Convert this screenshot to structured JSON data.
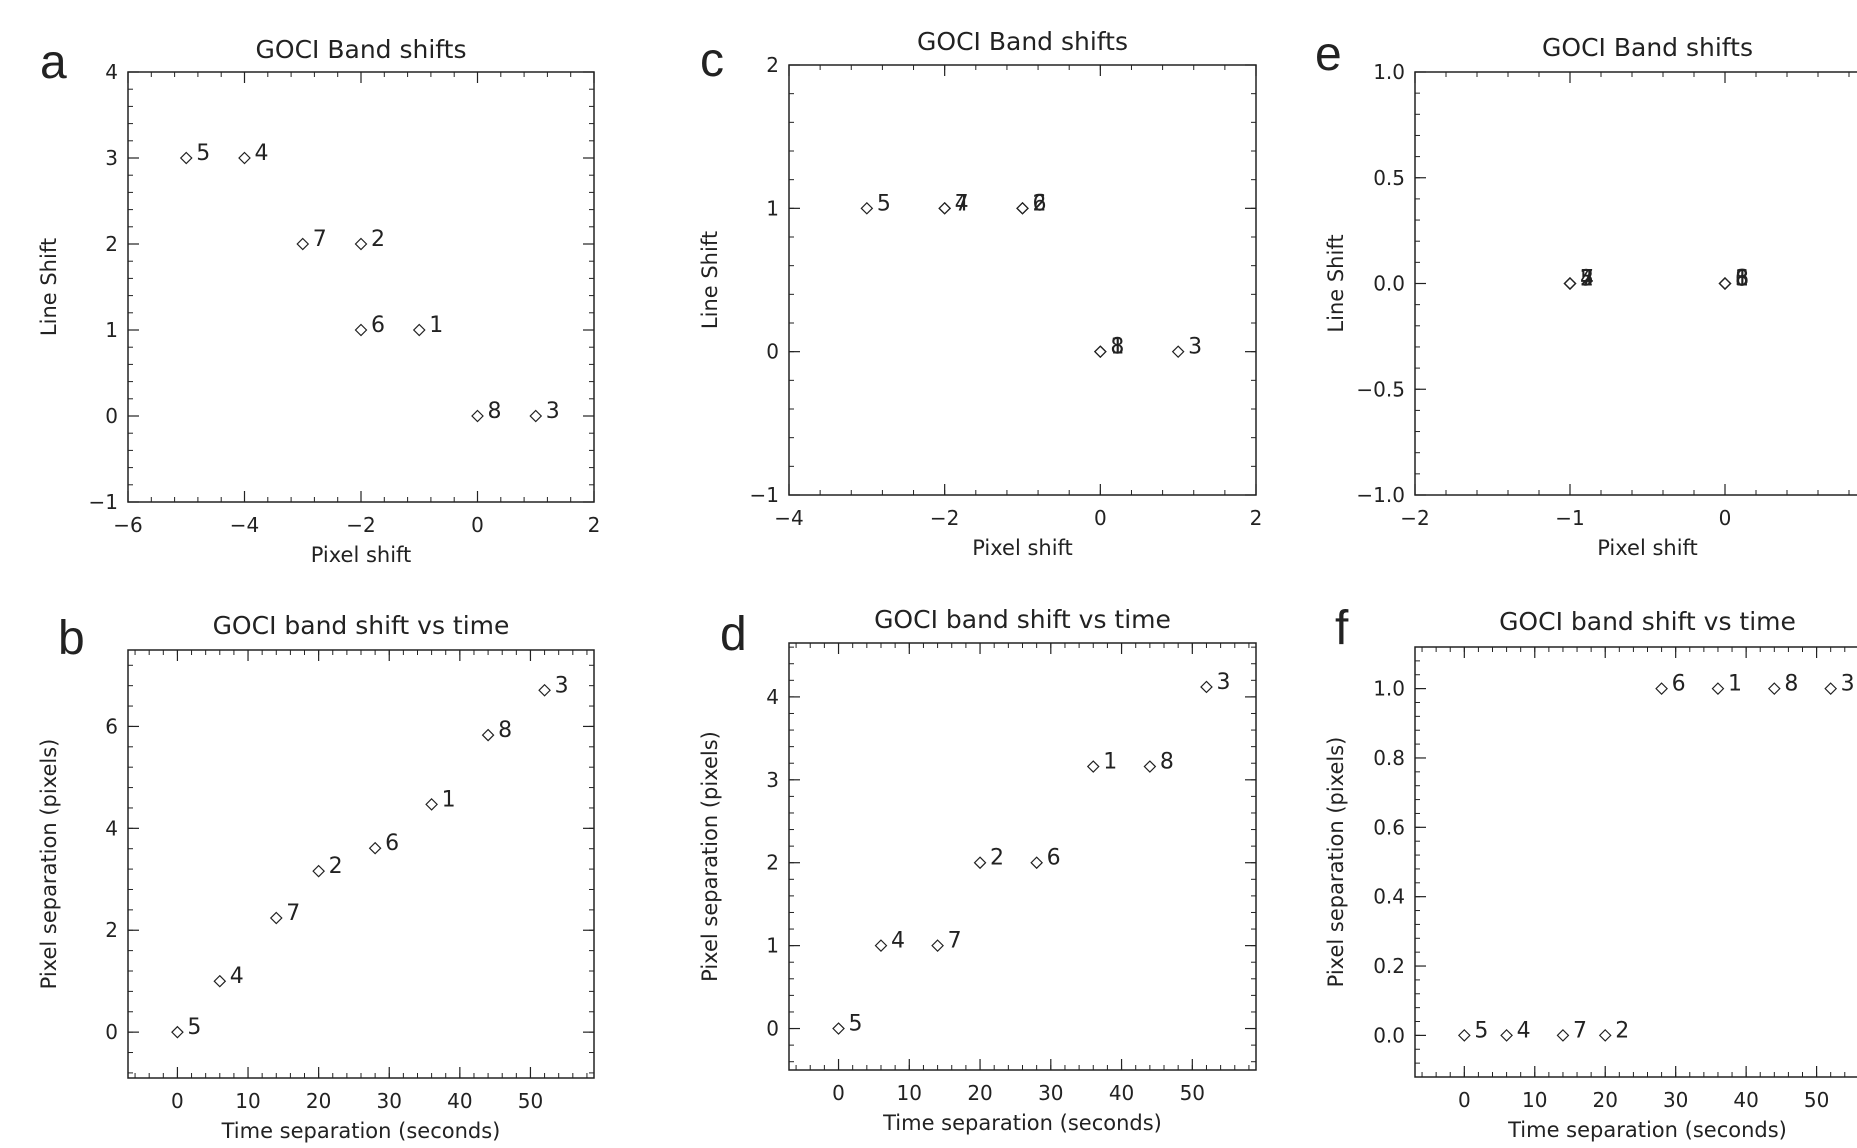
{
  "chart_data": [
    {
      "panel": "a",
      "type": "scatter",
      "title": "GOCI Band shifts",
      "xlabel": "Pixel shift",
      "ylabel": "Line Shift",
      "xlim": [
        -6,
        2
      ],
      "ylim": [
        -1,
        4
      ],
      "xticks": [
        -6,
        -4,
        -2,
        0,
        2
      ],
      "xtick_labels": [
        "−6",
        "−4",
        "−2",
        "0",
        "2"
      ],
      "yticks": [
        -1,
        0,
        1,
        2,
        3,
        4
      ],
      "ytick_labels": [
        "−1",
        "0",
        "1",
        "2",
        "3",
        "4"
      ],
      "points": [
        {
          "label": "5",
          "x": -5,
          "y": 3
        },
        {
          "label": "4",
          "x": -4,
          "y": 3
        },
        {
          "label": "7",
          "x": -3,
          "y": 2
        },
        {
          "label": "2",
          "x": -2,
          "y": 2
        },
        {
          "label": "6",
          "x": -2,
          "y": 1
        },
        {
          "label": "1",
          "x": -1,
          "y": 1
        },
        {
          "label": "8",
          "x": 0,
          "y": 0
        },
        {
          "label": "3",
          "x": 1,
          "y": 0
        }
      ]
    },
    {
      "panel": "b",
      "type": "scatter",
      "title": "GOCI band shift vs time",
      "xlabel": "Time separation (seconds)",
      "ylabel": "Pixel separation (pixels)",
      "xlim": [
        -7,
        59
      ],
      "ylim": [
        -0.9,
        7.5
      ],
      "xticks": [
        0,
        10,
        20,
        30,
        40,
        50
      ],
      "xtick_labels": [
        "0",
        "10",
        "20",
        "30",
        "40",
        "50"
      ],
      "yticks": [
        0,
        2,
        4,
        6
      ],
      "ytick_labels": [
        "0",
        "2",
        "4",
        "6"
      ],
      "points": [
        {
          "label": "5",
          "x": 0,
          "y": 0
        },
        {
          "label": "4",
          "x": 6,
          "y": 1
        },
        {
          "label": "7",
          "x": 14,
          "y": 2.24
        },
        {
          "label": "2",
          "x": 20,
          "y": 3.16
        },
        {
          "label": "6",
          "x": 28,
          "y": 3.61
        },
        {
          "label": "1",
          "x": 36,
          "y": 4.47
        },
        {
          "label": "8",
          "x": 44,
          "y": 5.83
        },
        {
          "label": "3",
          "x": 52,
          "y": 6.71
        }
      ]
    },
    {
      "panel": "c",
      "type": "scatter",
      "title": "GOCI Band shifts",
      "xlabel": "Pixel shift",
      "ylabel": "Line Shift",
      "xlim": [
        -4,
        2
      ],
      "ylim": [
        -1,
        2
      ],
      "xticks": [
        -4,
        -2,
        0,
        2
      ],
      "xtick_labels": [
        "−4",
        "−2",
        "0",
        "2"
      ],
      "yticks": [
        -1,
        0,
        1,
        2
      ],
      "ytick_labels": [
        "−1",
        "0",
        "1",
        "2"
      ],
      "points": [
        {
          "label": "5",
          "x": -3,
          "y": 1
        },
        {
          "label": "7",
          "x": -2,
          "y": 1
        },
        {
          "label": "4",
          "x": -2,
          "y": 1
        },
        {
          "label": "2",
          "x": -1,
          "y": 1
        },
        {
          "label": "6",
          "x": -1,
          "y": 1
        },
        {
          "label": "1",
          "x": 0,
          "y": 0
        },
        {
          "label": "8",
          "x": 0,
          "y": 0
        },
        {
          "label": "3",
          "x": 1,
          "y": 0
        }
      ]
    },
    {
      "panel": "d",
      "type": "scatter",
      "title": "GOCI band shift vs time",
      "xlabel": "Time separation (seconds)",
      "ylabel": "Pixel separation (pixels)",
      "xlim": [
        -7,
        59
      ],
      "ylim": [
        -0.5,
        4.65
      ],
      "xticks": [
        0,
        10,
        20,
        30,
        40,
        50
      ],
      "xtick_labels": [
        "0",
        "10",
        "20",
        "30",
        "40",
        "50"
      ],
      "yticks": [
        0,
        1,
        2,
        3,
        4
      ],
      "ytick_labels": [
        "0",
        "1",
        "2",
        "3",
        "4"
      ],
      "points": [
        {
          "label": "5",
          "x": 0,
          "y": 0
        },
        {
          "label": "4",
          "x": 6,
          "y": 1
        },
        {
          "label": "7",
          "x": 14,
          "y": 1
        },
        {
          "label": "2",
          "x": 20,
          "y": 2
        },
        {
          "label": "6",
          "x": 28,
          "y": 2
        },
        {
          "label": "1",
          "x": 36,
          "y": 3.16
        },
        {
          "label": "8",
          "x": 44,
          "y": 3.16
        },
        {
          "label": "3",
          "x": 52,
          "y": 4.12
        }
      ]
    },
    {
      "panel": "e",
      "type": "scatter",
      "title": "GOCI Band shifts",
      "xlabel": "Pixel shift",
      "ylabel": "Line Shift",
      "xlim": [
        -2,
        1
      ],
      "ylim": [
        -1,
        1
      ],
      "xticks": [
        -2,
        -1,
        0
      ],
      "xtick_labels": [
        "−2",
        "−1",
        "0"
      ],
      "yticks": [
        -1,
        -0.5,
        0,
        0.5,
        1
      ],
      "ytick_labels": [
        "−1.0",
        "−0.5",
        "0.0",
        "0.5",
        "1.0"
      ],
      "points": [
        {
          "label": "5",
          "x": -1,
          "y": 0
        },
        {
          "label": "4",
          "x": -1,
          "y": 0
        },
        {
          "label": "7",
          "x": -1,
          "y": 0
        },
        {
          "label": "2",
          "x": -1,
          "y": 0
        },
        {
          "label": "6",
          "x": 0,
          "y": 0
        },
        {
          "label": "1",
          "x": 0,
          "y": 0
        },
        {
          "label": "8",
          "x": 0,
          "y": 0
        },
        {
          "label": "3",
          "x": 0,
          "y": 0
        }
      ]
    },
    {
      "panel": "f",
      "type": "scatter",
      "title": "GOCI band shift vs time",
      "xlabel": "Time separation (seconds)",
      "ylabel": "Pixel separation (pixels)",
      "xlim": [
        -7,
        59
      ],
      "ylim": [
        -0.12,
        1.12
      ],
      "xticks": [
        0,
        10,
        20,
        30,
        40,
        50
      ],
      "xtick_labels": [
        "0",
        "10",
        "20",
        "30",
        "40",
        "50"
      ],
      "yticks": [
        0,
        0.2,
        0.4,
        0.6,
        0.8,
        1
      ],
      "ytick_labels": [
        "0.0",
        "0.2",
        "0.4",
        "0.6",
        "0.8",
        "1.0"
      ],
      "points": [
        {
          "label": "5",
          "x": 0,
          "y": 0
        },
        {
          "label": "4",
          "x": 6,
          "y": 0
        },
        {
          "label": "7",
          "x": 14,
          "y": 0
        },
        {
          "label": "2",
          "x": 20,
          "y": 0
        },
        {
          "label": "6",
          "x": 28,
          "y": 1
        },
        {
          "label": "1",
          "x": 36,
          "y": 1
        },
        {
          "label": "8",
          "x": 44,
          "y": 1
        },
        {
          "label": "3",
          "x": 52,
          "y": 1
        }
      ]
    }
  ]
}
